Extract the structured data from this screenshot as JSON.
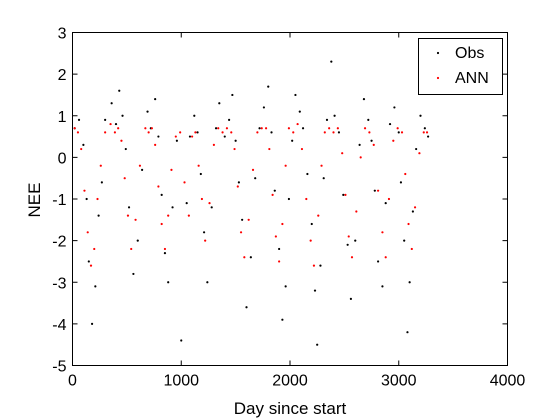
{
  "chart_data": {
    "type": "scatter",
    "title": "",
    "xlabel": "Day since start",
    "ylabel": "NEE",
    "xlim": [
      0,
      4000
    ],
    "ylim": [
      -5,
      3
    ],
    "xticks": [
      0,
      1000,
      2000,
      3000,
      4000
    ],
    "yticks": [
      -5,
      -4,
      -3,
      -2,
      -1,
      0,
      1,
      2,
      3
    ],
    "xtick_labels": [
      "0",
      "1000",
      "2000",
      "3000",
      "4000"
    ],
    "ytick_labels": [
      "-5",
      "-4",
      "-3",
      "-2",
      "-1",
      "0",
      "1",
      "2",
      "3"
    ],
    "grid": false,
    "legend_position": "top-right",
    "series": [
      {
        "name": "Obs",
        "color": "#000000",
        "marker": "dot",
        "x": [
          20,
          60,
          100,
          130,
          150,
          180,
          210,
          240,
          270,
          300,
          360,
          400,
          430,
          460,
          490,
          520,
          560,
          600,
          640,
          690,
          720,
          760,
          790,
          820,
          850,
          880,
          920,
          960,
          1000,
          1050,
          1080,
          1120,
          1150,
          1180,
          1210,
          1240,
          1280,
          1320,
          1350,
          1400,
          1440,
          1470,
          1500,
          1530,
          1560,
          1600,
          1640,
          1680,
          1720,
          1760,
          1800,
          1830,
          1860,
          1900,
          1930,
          1960,
          1990,
          2020,
          2050,
          2090,
          2120,
          2160,
          2200,
          2230,
          2250,
          2280,
          2310,
          2340,
          2380,
          2410,
          2450,
          2490,
          2530,
          2560,
          2600,
          2640,
          2680,
          2720,
          2750,
          2780,
          2810,
          2850,
          2880,
          2920,
          2960,
          3000,
          3020,
          3050,
          3080,
          3100,
          3130,
          3160,
          3200,
          3240,
          3270
        ],
        "y": [
          0.7,
          0.9,
          0.3,
          -1.0,
          -2.5,
          -4.0,
          -3.1,
          -1.4,
          -0.6,
          0.9,
          1.3,
          0.8,
          1.6,
          1.0,
          0.2,
          -1.2,
          -2.8,
          -2.0,
          -0.3,
          1.1,
          0.7,
          1.4,
          0.5,
          -0.9,
          -2.3,
          -3.0,
          -1.2,
          0.4,
          -4.4,
          -1.1,
          0.5,
          1.0,
          0.6,
          -0.4,
          -1.8,
          -3.0,
          -1.2,
          0.7,
          1.3,
          0.5,
          0.9,
          1.5,
          0.4,
          -0.6,
          -1.5,
          -3.6,
          -2.4,
          -0.5,
          0.7,
          1.2,
          1.7,
          0.6,
          -0.8,
          -2.2,
          -3.9,
          -3.1,
          -1.0,
          0.4,
          1.5,
          1.1,
          0.7,
          -0.4,
          -1.6,
          -3.2,
          -4.5,
          -2.6,
          -0.5,
          0.9,
          2.3,
          1.0,
          0.6,
          -0.9,
          -2.1,
          -3.4,
          -2.0,
          0.3,
          1.4,
          0.9,
          0.4,
          -0.8,
          -2.5,
          -3.1,
          -1.1,
          0.8,
          1.2,
          0.6,
          -0.6,
          -2.0,
          -4.2,
          -3.0,
          -1.3,
          0.2,
          1.0,
          0.7,
          0.5
        ]
      },
      {
        "name": "ANN",
        "color": "#ff0000",
        "marker": "dot",
        "x": [
          20,
          50,
          80,
          110,
          140,
          170,
          200,
          230,
          260,
          300,
          350,
          390,
          420,
          450,
          480,
          510,
          540,
          580,
          620,
          670,
          700,
          730,
          760,
          790,
          820,
          850,
          880,
          910,
          950,
          990,
          1030,
          1070,
          1100,
          1130,
          1160,
          1190,
          1220,
          1260,
          1300,
          1340,
          1380,
          1420,
          1460,
          1490,
          1520,
          1550,
          1580,
          1620,
          1660,
          1700,
          1740,
          1780,
          1810,
          1840,
          1870,
          1900,
          1930,
          1960,
          1990,
          2030,
          2070,
          2110,
          2150,
          2190,
          2220,
          2260,
          2290,
          2320,
          2360,
          2400,
          2440,
          2480,
          2510,
          2540,
          2570,
          2610,
          2650,
          2690,
          2730,
          2770,
          2810,
          2850,
          2880,
          2910,
          2950,
          2990,
          3030,
          3060,
          3090,
          3120,
          3150,
          3190,
          3230,
          3260
        ],
        "y": [
          0.7,
          0.6,
          0.2,
          -0.8,
          -1.8,
          -2.6,
          -2.2,
          -1.0,
          -0.2,
          0.6,
          0.8,
          0.6,
          0.7,
          0.4,
          -0.5,
          -1.4,
          -2.2,
          -1.5,
          -0.2,
          0.7,
          0.6,
          0.7,
          0.3,
          -0.7,
          -1.6,
          -2.2,
          -1.4,
          -0.3,
          0.5,
          0.6,
          -0.6,
          -1.4,
          0.5,
          0.6,
          -0.2,
          -1.0,
          -2.0,
          -1.1,
          0.3,
          0.7,
          0.6,
          0.7,
          0.6,
          0.2,
          -0.7,
          -1.8,
          -2.4,
          -1.5,
          -0.3,
          0.6,
          0.7,
          0.7,
          0.2,
          -0.9,
          -1.9,
          -2.5,
          -1.6,
          -0.2,
          0.7,
          0.6,
          0.8,
          0.2,
          -1.0,
          -2.0,
          -2.6,
          -1.4,
          -0.2,
          0.6,
          0.7,
          0.6,
          0.7,
          0.1,
          -0.9,
          -1.9,
          -2.4,
          -1.3,
          0.0,
          0.7,
          0.6,
          0.3,
          -0.8,
          -1.8,
          -2.4,
          -1.0,
          0.4,
          0.7,
          0.6,
          -0.4,
          -1.6,
          -2.2,
          -1.2,
          0.1,
          0.6,
          0.6
        ]
      }
    ]
  }
}
